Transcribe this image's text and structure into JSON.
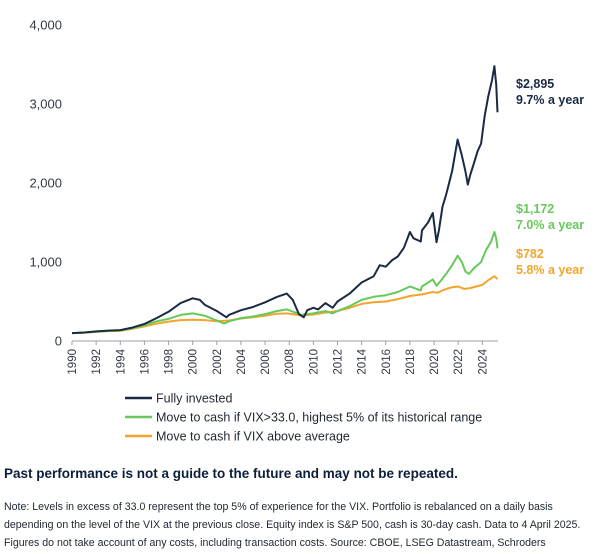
{
  "chart_data": {
    "type": "line",
    "ylim": [
      0,
      4000
    ],
    "yticks": [
      "0",
      "1,000",
      "2,000",
      "3,000",
      "4,000"
    ],
    "ytick_values": [
      0,
      1000,
      2000,
      3000,
      4000
    ],
    "xlim": [
      1990,
      2025.3
    ],
    "xticks": [
      "1990",
      "1992",
      "1994",
      "1996",
      "1998",
      "2000",
      "2002",
      "2004",
      "2006",
      "2008",
      "2010",
      "2012",
      "2014",
      "2016",
      "2018",
      "2020",
      "2022",
      "2024"
    ],
    "xtick_values": [
      1990,
      1992,
      1994,
      1996,
      1998,
      2000,
      2002,
      2004,
      2006,
      2008,
      2010,
      2012,
      2014,
      2016,
      2018,
      2020,
      2022,
      2024
    ],
    "grid": false,
    "legend_position": "bottom-left",
    "series": [
      {
        "name": "Fully invested",
        "color": "#1b2a44",
        "end_value_label": "$2,895",
        "end_rate_label": "9.7% a year",
        "points": [
          [
            1990,
            100
          ],
          [
            1991,
            108
          ],
          [
            1992,
            122
          ],
          [
            1993,
            132
          ],
          [
            1994,
            138
          ],
          [
            1995,
            170
          ],
          [
            1996,
            215
          ],
          [
            1997,
            290
          ],
          [
            1998,
            370
          ],
          [
            1999,
            480
          ],
          [
            2000,
            540
          ],
          [
            2000.6,
            520
          ],
          [
            2001,
            460
          ],
          [
            2002,
            380
          ],
          [
            2002.8,
            300
          ],
          [
            2003,
            330
          ],
          [
            2004,
            390
          ],
          [
            2005,
            430
          ],
          [
            2006,
            490
          ],
          [
            2007,
            560
          ],
          [
            2007.8,
            600
          ],
          [
            2008.3,
            520
          ],
          [
            2008.8,
            340
          ],
          [
            2009.2,
            300
          ],
          [
            2009.5,
            390
          ],
          [
            2010,
            420
          ],
          [
            2010.4,
            400
          ],
          [
            2011,
            480
          ],
          [
            2011.6,
            420
          ],
          [
            2012,
            500
          ],
          [
            2013,
            600
          ],
          [
            2014,
            740
          ],
          [
            2015,
            820
          ],
          [
            2015.5,
            960
          ],
          [
            2016,
            940
          ],
          [
            2016.5,
            1020
          ],
          [
            2017,
            1070
          ],
          [
            2017.5,
            1180
          ],
          [
            2018,
            1380
          ],
          [
            2018.3,
            1300
          ],
          [
            2018.9,
            1260
          ],
          [
            2019,
            1400
          ],
          [
            2019.5,
            1500
          ],
          [
            2019.9,
            1620
          ],
          [
            2020.2,
            1250
          ],
          [
            2020.4,
            1400
          ],
          [
            2020.7,
            1700
          ],
          [
            2021,
            1850
          ],
          [
            2021.5,
            2150
          ],
          [
            2021.95,
            2550
          ],
          [
            2022.3,
            2350
          ],
          [
            2022.6,
            2150
          ],
          [
            2022.8,
            1980
          ],
          [
            2023,
            2100
          ],
          [
            2023.3,
            2250
          ],
          [
            2023.6,
            2400
          ],
          [
            2023.9,
            2500
          ],
          [
            2024.2,
            2850
          ],
          [
            2024.5,
            3100
          ],
          [
            2024.8,
            3300
          ],
          [
            2025.0,
            3480
          ],
          [
            2025.15,
            3250
          ],
          [
            2025.26,
            2895
          ]
        ]
      },
      {
        "name": "Move to cash if VIX>33.0, highest 5% of its historical range",
        "color": "#66c95a",
        "end_value_label": "$1,172",
        "end_rate_label": "7.0% a year",
        "points": [
          [
            1990,
            100
          ],
          [
            1991,
            106
          ],
          [
            1992,
            118
          ],
          [
            1993,
            128
          ],
          [
            1994,
            133
          ],
          [
            1995,
            160
          ],
          [
            1996,
            200
          ],
          [
            1997,
            250
          ],
          [
            1998,
            280
          ],
          [
            1999,
            330
          ],
          [
            2000,
            350
          ],
          [
            2001,
            320
          ],
          [
            2002,
            260
          ],
          [
            2002.6,
            220
          ],
          [
            2003,
            250
          ],
          [
            2004,
            290
          ],
          [
            2005,
            310
          ],
          [
            2006,
            340
          ],
          [
            2007,
            380
          ],
          [
            2007.8,
            400
          ],
          [
            2008.5,
            360
          ],
          [
            2009,
            330
          ],
          [
            2010,
            350
          ],
          [
            2011,
            380
          ],
          [
            2011.6,
            350
          ],
          [
            2012,
            380
          ],
          [
            2013,
            440
          ],
          [
            2014,
            520
          ],
          [
            2015,
            560
          ],
          [
            2016,
            580
          ],
          [
            2017,
            620
          ],
          [
            2018,
            690
          ],
          [
            2018.9,
            640
          ],
          [
            2019,
            690
          ],
          [
            2019.9,
            780
          ],
          [
            2020.2,
            700
          ],
          [
            2020.6,
            770
          ],
          [
            2021,
            850
          ],
          [
            2021.5,
            960
          ],
          [
            2021.95,
            1080
          ],
          [
            2022.3,
            1000
          ],
          [
            2022.6,
            880
          ],
          [
            2022.9,
            850
          ],
          [
            2023.3,
            920
          ],
          [
            2023.9,
            1000
          ],
          [
            2024.3,
            1150
          ],
          [
            2024.7,
            1250
          ],
          [
            2025.0,
            1380
          ],
          [
            2025.15,
            1300
          ],
          [
            2025.26,
            1172
          ]
        ]
      },
      {
        "name": "Move to cash if VIX above average",
        "color": "#f3a52b",
        "end_value_label": "$782",
        "end_rate_label": "5.8% a year",
        "points": [
          [
            1990,
            100
          ],
          [
            1991,
            105
          ],
          [
            1992,
            115
          ],
          [
            1993,
            125
          ],
          [
            1994,
            130
          ],
          [
            1995,
            155
          ],
          [
            1996,
            185
          ],
          [
            1997,
            220
          ],
          [
            1998,
            245
          ],
          [
            1999,
            265
          ],
          [
            2000,
            270
          ],
          [
            2001,
            265
          ],
          [
            2002,
            250
          ],
          [
            2003,
            260
          ],
          [
            2004,
            285
          ],
          [
            2005,
            300
          ],
          [
            2006,
            320
          ],
          [
            2007,
            345
          ],
          [
            2007.8,
            350
          ],
          [
            2008.5,
            335
          ],
          [
            2009,
            320
          ],
          [
            2010,
            335
          ],
          [
            2011,
            360
          ],
          [
            2012,
            380
          ],
          [
            2013,
            420
          ],
          [
            2014,
            470
          ],
          [
            2015,
            490
          ],
          [
            2016,
            500
          ],
          [
            2017,
            530
          ],
          [
            2018,
            570
          ],
          [
            2019,
            590
          ],
          [
            2019.9,
            620
          ],
          [
            2020.3,
            610
          ],
          [
            2020.7,
            640
          ],
          [
            2021,
            660
          ],
          [
            2021.5,
            680
          ],
          [
            2022,
            690
          ],
          [
            2022.5,
            660
          ],
          [
            2023,
            670
          ],
          [
            2023.5,
            690
          ],
          [
            2024,
            710
          ],
          [
            2024.5,
            770
          ],
          [
            2025.0,
            820
          ],
          [
            2025.26,
            782
          ]
        ]
      }
    ]
  },
  "disclaimer": "Past performance is not a guide to the future and may not be repeated.",
  "note": "Note: Levels in excess of 33.0 represent the top 5% of experience for the VIX.  Portfolio is rebalanced on a daily basis depending on the level of the VIX at the previous close. Equity index is S&P 500, cash is 30-day cash. Data to 4 April 2025. Figures do not take account of any costs, including transaction costs. Source: CBOE, LSEG Datastream, Schroders"
}
